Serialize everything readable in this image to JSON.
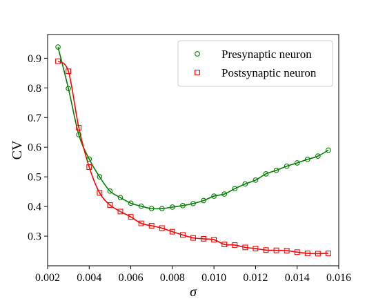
{
  "chart_data": {
    "type": "line",
    "xlabel": "σ",
    "ylabel": "CV",
    "xlim": [
      0.002,
      0.016
    ],
    "ylim": [
      0.2,
      0.98
    ],
    "xticks": [
      0.002,
      0.004,
      0.006,
      0.008,
      0.01,
      0.012,
      0.014,
      0.016
    ],
    "xtick_labels": [
      "0.002",
      "0.004",
      "0.006",
      "0.008",
      "0.010",
      "0.012",
      "0.014",
      "0.016"
    ],
    "yticks": [
      0.3,
      0.4,
      0.5,
      0.6,
      0.7,
      0.8,
      0.9
    ],
    "ytick_labels": [
      "0.3",
      "0.4",
      "0.5",
      "0.6",
      "0.7",
      "0.8",
      "0.9"
    ],
    "grid": false,
    "legend_position": "top-right",
    "x": [
      0.0025,
      0.003,
      0.0035,
      0.004,
      0.0045,
      0.005,
      0.0055,
      0.006,
      0.0065,
      0.007,
      0.0075,
      0.008,
      0.0085,
      0.009,
      0.0095,
      0.01,
      0.0105,
      0.011,
      0.0115,
      0.012,
      0.0125,
      0.013,
      0.0135,
      0.014,
      0.0145,
      0.015,
      0.0155
    ],
    "series": [
      {
        "name": "Presynaptic neuron",
        "color": "#008000",
        "marker": "circle",
        "values": [
          0.938,
          0.798,
          0.642,
          0.56,
          0.5,
          0.452,
          0.43,
          0.411,
          0.401,
          0.393,
          0.393,
          0.398,
          0.403,
          0.41,
          0.42,
          0.435,
          0.442,
          0.46,
          0.476,
          0.489,
          0.51,
          0.522,
          0.536,
          0.547,
          0.559,
          0.57,
          0.59
        ]
      },
      {
        "name": "Postsynaptic neuron",
        "color": "#ff0000",
        "marker": "square",
        "values": [
          0.89,
          0.856,
          0.666,
          0.533,
          0.446,
          0.405,
          0.383,
          0.365,
          0.343,
          0.335,
          0.327,
          0.315,
          0.304,
          0.294,
          0.291,
          0.288,
          0.272,
          0.27,
          0.262,
          0.258,
          0.253,
          0.252,
          0.251,
          0.246,
          0.242,
          0.241,
          0.242
        ]
      }
    ]
  }
}
